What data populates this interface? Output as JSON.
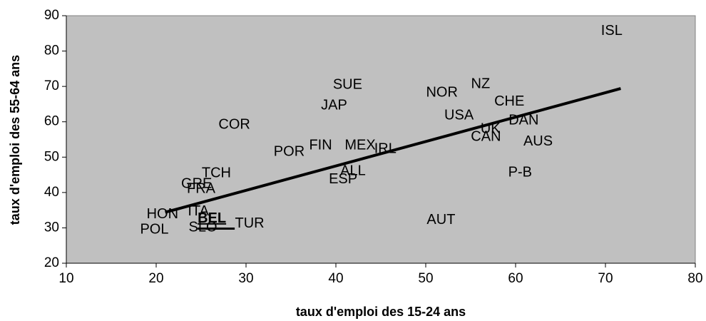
{
  "chart_data": {
    "type": "scatter",
    "xlabel": "taux d'emploi des 15-24 ans",
    "ylabel": "taux d'emploi des 55-64 ans",
    "xlim": [
      10,
      80
    ],
    "ylim": [
      20,
      90
    ],
    "xticks": [
      10,
      20,
      30,
      40,
      50,
      60,
      70,
      80
    ],
    "yticks": [
      20,
      30,
      40,
      50,
      60,
      70,
      80,
      90
    ],
    "plot_color": "#c0c0c0",
    "labels": [
      "ISL",
      "SUE",
      "JAP",
      "NOR",
      "NZ",
      "CHE",
      "USA",
      "DAN",
      "UK",
      "CAN",
      "AUS",
      "COR",
      "POR",
      "FIN",
      "MEX",
      "IRL",
      "ALL",
      "ESP",
      "P-B",
      "TCH",
      "GRE",
      "FRA",
      "HON",
      "ITA",
      "BEL",
      "TUR",
      "SLO",
      "POL",
      "AUT"
    ],
    "x": [
      70.7,
      41.3,
      39.8,
      51.8,
      56.1,
      59.3,
      53.7,
      60.9,
      57.2,
      56.7,
      62.5,
      28.7,
      34.8,
      38.3,
      42.7,
      45.5,
      41.9,
      40.8,
      60.5,
      26.7,
      24.5,
      25.0,
      20.7,
      24.7,
      26.2,
      30.4,
      25.2,
      19.8,
      51.7
    ],
    "y": [
      85.6,
      70.4,
      64.5,
      68.2,
      70.6,
      65.6,
      61.7,
      60.3,
      57.9,
      55.7,
      54.4,
      59.1,
      51.4,
      53.2,
      53.2,
      52.2,
      46.0,
      43.7,
      45.6,
      45.4,
      42.3,
      40.9,
      33.8,
      34.6,
      32.6,
      31.2,
      30.0,
      29.4,
      32.2
    ],
    "bold_points": [
      24
    ],
    "trendline": {
      "x": [
        21.0,
        71.7
      ],
      "y": [
        34.4,
        69.4
      ],
      "color": "#000000"
    }
  }
}
